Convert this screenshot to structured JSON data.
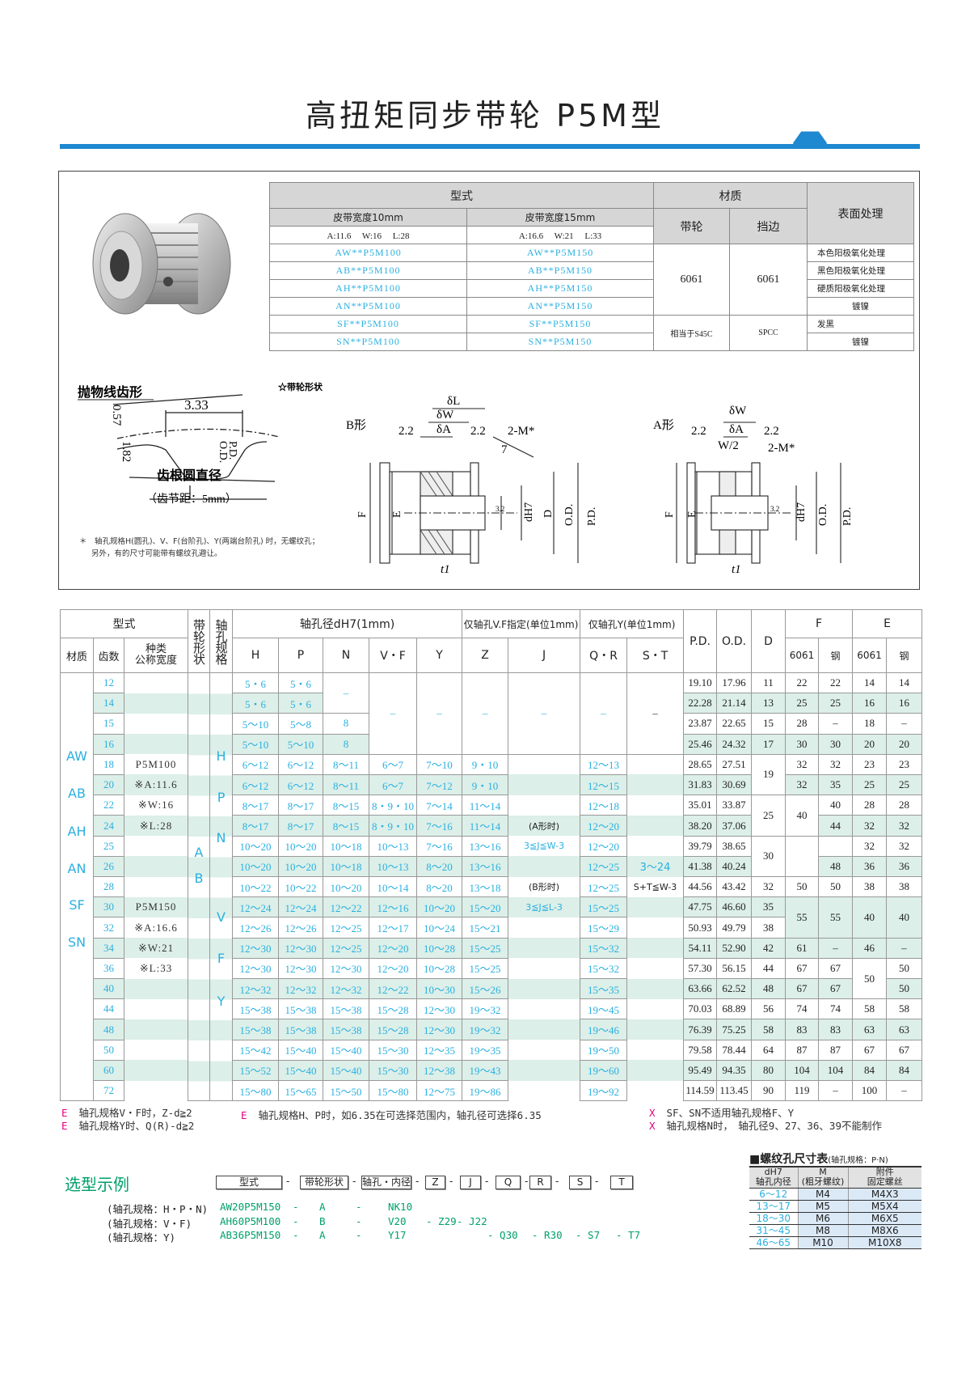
{
  "title": "高扭矩同步带轮 P5M型",
  "colors": {
    "accent": "#1e88d0",
    "value_blue": "#2ab0e0",
    "pink": "#e4007f",
    "stripe": "#dcefe8",
    "green": "#00a06b"
  },
  "spec_table": {
    "h_type": "型式",
    "h_material": "材质",
    "h_surface": "表面处理",
    "h_w10": "皮带宽度10mm",
    "h_w15": "皮带宽度15mm",
    "h_pulley": "带轮",
    "h_flange": "挡边",
    "dims10": "A:11.6　 W:16　 L:28",
    "dims15": "A:16.6　 W:21　 L:33",
    "rows": [
      {
        "m10": "AW**P5M100",
        "m15": "AW**P5M150",
        "surface": "本色阳极氧化处理"
      },
      {
        "m10": "AB**P5M100",
        "m15": "AB**P5M150",
        "surface": "黑色阳极氧化处理"
      },
      {
        "m10": "AH**P5M100",
        "m15": "AH**P5M150",
        "surface": "硬质阳极氧化处理"
      },
      {
        "m10": "AN**P5M100",
        "m15": "AN**P5M150",
        "surface": "镀镍"
      },
      {
        "m10": "SF**P5M100",
        "m15": "SF**P5M150",
        "surface": "发黑"
      },
      {
        "m10": "SN**P5M100",
        "m15": "SN**P5M150",
        "surface": "镀镍"
      }
    ],
    "mat_al_pulley": "6061",
    "mat_al_flange": "6061",
    "mat_steel_pulley": "相当于S45C",
    "mat_steel_flange": "SPCC"
  },
  "tooth_profile": {
    "title": "抛物线齿形",
    "width": "3.33",
    "h1": "0.57",
    "h2": "1.82",
    "od": "O.D.",
    "pd": "P.D.",
    "root": "齿根圆直径",
    "pitch": "（齿节距：5mm）"
  },
  "drawing": {
    "title": "☆带轮形状",
    "b_shape": "B形",
    "a_shape": "A形",
    "dl": "δL",
    "dw": "δW",
    "da": "δA",
    "w2": "W/2",
    "dim22": "2.2",
    "m": "2-M*",
    "seven": "7",
    "f": "F",
    "e": "E",
    "d": "D",
    "dh7": "dH7",
    "od": "O.D.",
    "pd": "P.D.",
    "t1": "t1",
    "r32": "3.2"
  },
  "drawing_note": [
    "＊　轴孔规格H(圆孔)、V、F(台阶孔)、Y(两端台阶孔) 时，无螺纹孔；",
    "另外，有的尺寸可能带有螺纹孔避让。"
  ],
  "main_table": {
    "headers": {
      "type": "型式",
      "shape": "带轮形状",
      "spec": "轴孔规格",
      "bore": "轴孔径dH7(1mm)",
      "vf_only": "仅轴孔V.F指定(单位1mm)",
      "y_only": "仅轴孔Y(单位1mm)",
      "pd": "P.D.",
      "od": "O.D.",
      "d": "D",
      "f": "F",
      "e": "E",
      "material": "材质",
      "teeth": "齿数",
      "kind": "种类\n公称宽度",
      "cols": [
        "H",
        "P",
        "N",
        "V・F",
        "Y",
        "Z",
        "J",
        "Q・R",
        "S・T"
      ],
      "f6061": "6061",
      "fsteel": "钢",
      "e6061": "6061",
      "esteel": "钢"
    },
    "materials": [
      "AW",
      "AB",
      "AH",
      "AN",
      "SF",
      "SN"
    ],
    "shapes": [
      "A",
      "B"
    ],
    "specs": [
      "H",
      "P",
      "N",
      "V",
      "F",
      "Y"
    ],
    "rows": [
      [
        "12",
        "",
        "5・6",
        "5・6",
        "–",
        "–",
        "–",
        "–",
        "–",
        "–",
        "–",
        "19.10",
        "17.96",
        "11",
        "22",
        "22",
        "14",
        "14"
      ],
      [
        "14",
        "",
        "5・6",
        "5・6",
        null,
        null,
        null,
        null,
        null,
        null,
        null,
        "22.28",
        "21.14",
        "13",
        "25",
        "25",
        "16",
        "16"
      ],
      [
        "15",
        "",
        "5〜10",
        "5〜8",
        "8",
        null,
        null,
        null,
        null,
        null,
        null,
        "23.87",
        "22.65",
        "15",
        "28",
        "–",
        "18",
        "–"
      ],
      [
        "16",
        "",
        "5〜10",
        "5〜10",
        "8",
        null,
        null,
        null,
        null,
        null,
        null,
        "25.46",
        "24.32",
        "17",
        "30",
        "30",
        "20",
        "20"
      ],
      [
        "18",
        "P5M100",
        "6〜12",
        "6〜12",
        "8〜11",
        "6〜7",
        "7〜10",
        "9・10",
        "",
        "12〜13",
        "",
        "28.65",
        "27.51",
        "19",
        "32",
        "32",
        "23",
        "23"
      ],
      [
        "20",
        "※A:11.6",
        "6〜12",
        "6〜12",
        "8〜11",
        "6〜7",
        "7〜12",
        "9・10",
        "",
        "12〜15",
        "",
        "31.83",
        "30.69",
        null,
        "32",
        "35",
        "25",
        "25"
      ],
      [
        "22",
        "※W:16",
        "8〜17",
        "8〜17",
        "8〜15",
        "8・9・10",
        "7〜14",
        "11〜14",
        "",
        "12〜18",
        "",
        "35.01",
        "33.87",
        "25",
        "40",
        "40",
        "28",
        "28"
      ],
      [
        "24",
        "※L:28",
        "8〜17",
        "8〜17",
        "8〜15",
        "8・9・10",
        "7〜16",
        "11〜14",
        "(A形时)",
        "12〜20",
        "",
        "38.20",
        "37.06",
        null,
        null,
        "44",
        "32",
        "32"
      ],
      [
        "25",
        "",
        "10〜20",
        "10〜20",
        "10〜18",
        "10〜13",
        "7〜16",
        "13〜16",
        "3≦J≦W-3",
        "12〜20",
        "",
        "39.79",
        "38.65",
        "30",
        "",
        "",
        "32",
        "32"
      ],
      [
        "26",
        "",
        "10〜20",
        "10〜20",
        "10〜18",
        "10〜13",
        "8〜20",
        "13〜16",
        "",
        "12〜25",
        "3〜24",
        "41.38",
        "40.24",
        null,
        null,
        "48",
        "36",
        "36"
      ],
      [
        "28",
        "",
        "10〜22",
        "10〜22",
        "10〜20",
        "10〜14",
        "8〜20",
        "13〜18",
        "(B形时)",
        "12〜25",
        "S+T≦W-3",
        "44.56",
        "43.42",
        "32",
        "50",
        "50",
        "38",
        "38"
      ],
      [
        "30",
        "P5M150",
        "12〜24",
        "12〜24",
        "12〜22",
        "12〜16",
        "10〜20",
        "15〜20",
        "3≦J≦L-3",
        "15〜25",
        "",
        "47.75",
        "46.60",
        "35",
        "55",
        "55",
        "40",
        "40"
      ],
      [
        "32",
        "※A:16.6",
        "12〜26",
        "12〜26",
        "12〜25",
        "12〜17",
        "10〜24",
        "15〜21",
        "",
        "15〜29",
        "",
        "50.93",
        "49.79",
        "38",
        null,
        null,
        null,
        null
      ],
      [
        "34",
        "※W:21",
        "12〜30",
        "12〜30",
        "12〜25",
        "12〜20",
        "10〜28",
        "15〜25",
        "",
        "15〜32",
        "",
        "54.11",
        "52.90",
        "42",
        "61",
        "–",
        "46",
        "–"
      ],
      [
        "36",
        "※L:33",
        "12〜30",
        "12〜30",
        "12〜30",
        "12〜20",
        "10〜28",
        "15〜25",
        "",
        "15〜32",
        "",
        "57.30",
        "56.15",
        "44",
        "67",
        "67",
        "50",
        "50"
      ],
      [
        "40",
        "",
        "12〜32",
        "12〜32",
        "12〜32",
        "12〜22",
        "10〜30",
        "15〜26",
        "",
        "15〜35",
        "",
        "63.66",
        "62.52",
        "48",
        "67",
        "67",
        null,
        "50"
      ],
      [
        "44",
        "",
        "15〜38",
        "15〜38",
        "15〜38",
        "15〜28",
        "12〜30",
        "19〜32",
        "",
        "19〜45",
        "",
        "70.03",
        "68.89",
        "56",
        "74",
        "74",
        "58",
        "58"
      ],
      [
        "48",
        "",
        "15〜38",
        "15〜38",
        "15〜38",
        "15〜28",
        "12〜30",
        "19〜32",
        "",
        "19〜46",
        "",
        "76.39",
        "75.25",
        "58",
        "83",
        "83",
        "63",
        "63"
      ],
      [
        "50",
        "",
        "15〜42",
        "15〜40",
        "15〜40",
        "15〜30",
        "12〜35",
        "19〜35",
        "",
        "19〜50",
        "",
        "79.58",
        "78.44",
        "64",
        "87",
        "87",
        "67",
        "67"
      ],
      [
        "60",
        "",
        "15〜52",
        "15〜40",
        "15〜40",
        "15〜30",
        "12〜38",
        "19〜43",
        "",
        "19〜60",
        "",
        "95.49",
        "94.35",
        "80",
        "104",
        "104",
        "84",
        "84"
      ],
      [
        "72",
        "",
        "15〜80",
        "15〜65",
        "15〜50",
        "15〜80",
        "12〜75",
        "19〜86",
        "",
        "19〜92",
        "",
        "114.59",
        "113.45",
        "90",
        "119",
        "–",
        "100",
        "–"
      ]
    ]
  },
  "notes": {
    "e1": {
      "mark": "E",
      "text": "轴孔规格V・F时，Z-d≧2"
    },
    "e2": {
      "mark": "E",
      "text": "轴孔规格Y时、Q(R)-d≧2"
    },
    "e3": {
      "mark": "E",
      "text": "轴孔规格H、P时，如6.35在可选择范围内，轴孔径可选择6.35"
    },
    "x1": {
      "mark": "X",
      "text": "SF、SN不适用轴孔规格F、Y"
    },
    "x2": {
      "mark": "X",
      "text": "轴孔规格N时，　轴孔径9、27、36、39不能制作"
    }
  },
  "selection": {
    "title": "选型示例",
    "boxes": [
      "型式",
      "带轮形状",
      "轴孔・内径",
      "Z",
      "J",
      "Q",
      "R",
      "S",
      "T"
    ],
    "examples": [
      {
        "label": "(轴孔规格：H・P・N)",
        "tokens": [
          "AW20P5M150",
          "-",
          "A",
          "-",
          "NK10",
          "",
          "",
          "",
          "",
          "",
          ""
        ]
      },
      {
        "label": "(轴孔规格：V・F)",
        "tokens": [
          "AH60P5M100",
          "-",
          "B",
          "-",
          "V20",
          "- Z29",
          "- J22",
          "",
          "",
          "",
          ""
        ]
      },
      {
        "label": "(轴孔规格：Y)",
        "tokens": [
          "AB36P5M150",
          "-",
          "A",
          "-",
          "Y17",
          "",
          "",
          "- Q30",
          "- R30",
          "- S7",
          "- T7"
        ]
      }
    ]
  },
  "thread_table": {
    "title": "■螺纹孔尺寸表",
    "subtitle": "(轴孔规格：P·N)",
    "headers": [
      "dH7\n轴孔内径",
      "M\n(粗牙螺纹)",
      "附件\n固定螺丝"
    ],
    "rows": [
      [
        "6〜12",
        "M4",
        "M4X3"
      ],
      [
        "13〜17",
        "M5",
        "M5X4"
      ],
      [
        "18〜30",
        "M6",
        "M6X5"
      ],
      [
        "31〜45",
        "M8",
        "M8X6"
      ],
      [
        "46〜65",
        "M10",
        "M10X8"
      ]
    ]
  }
}
